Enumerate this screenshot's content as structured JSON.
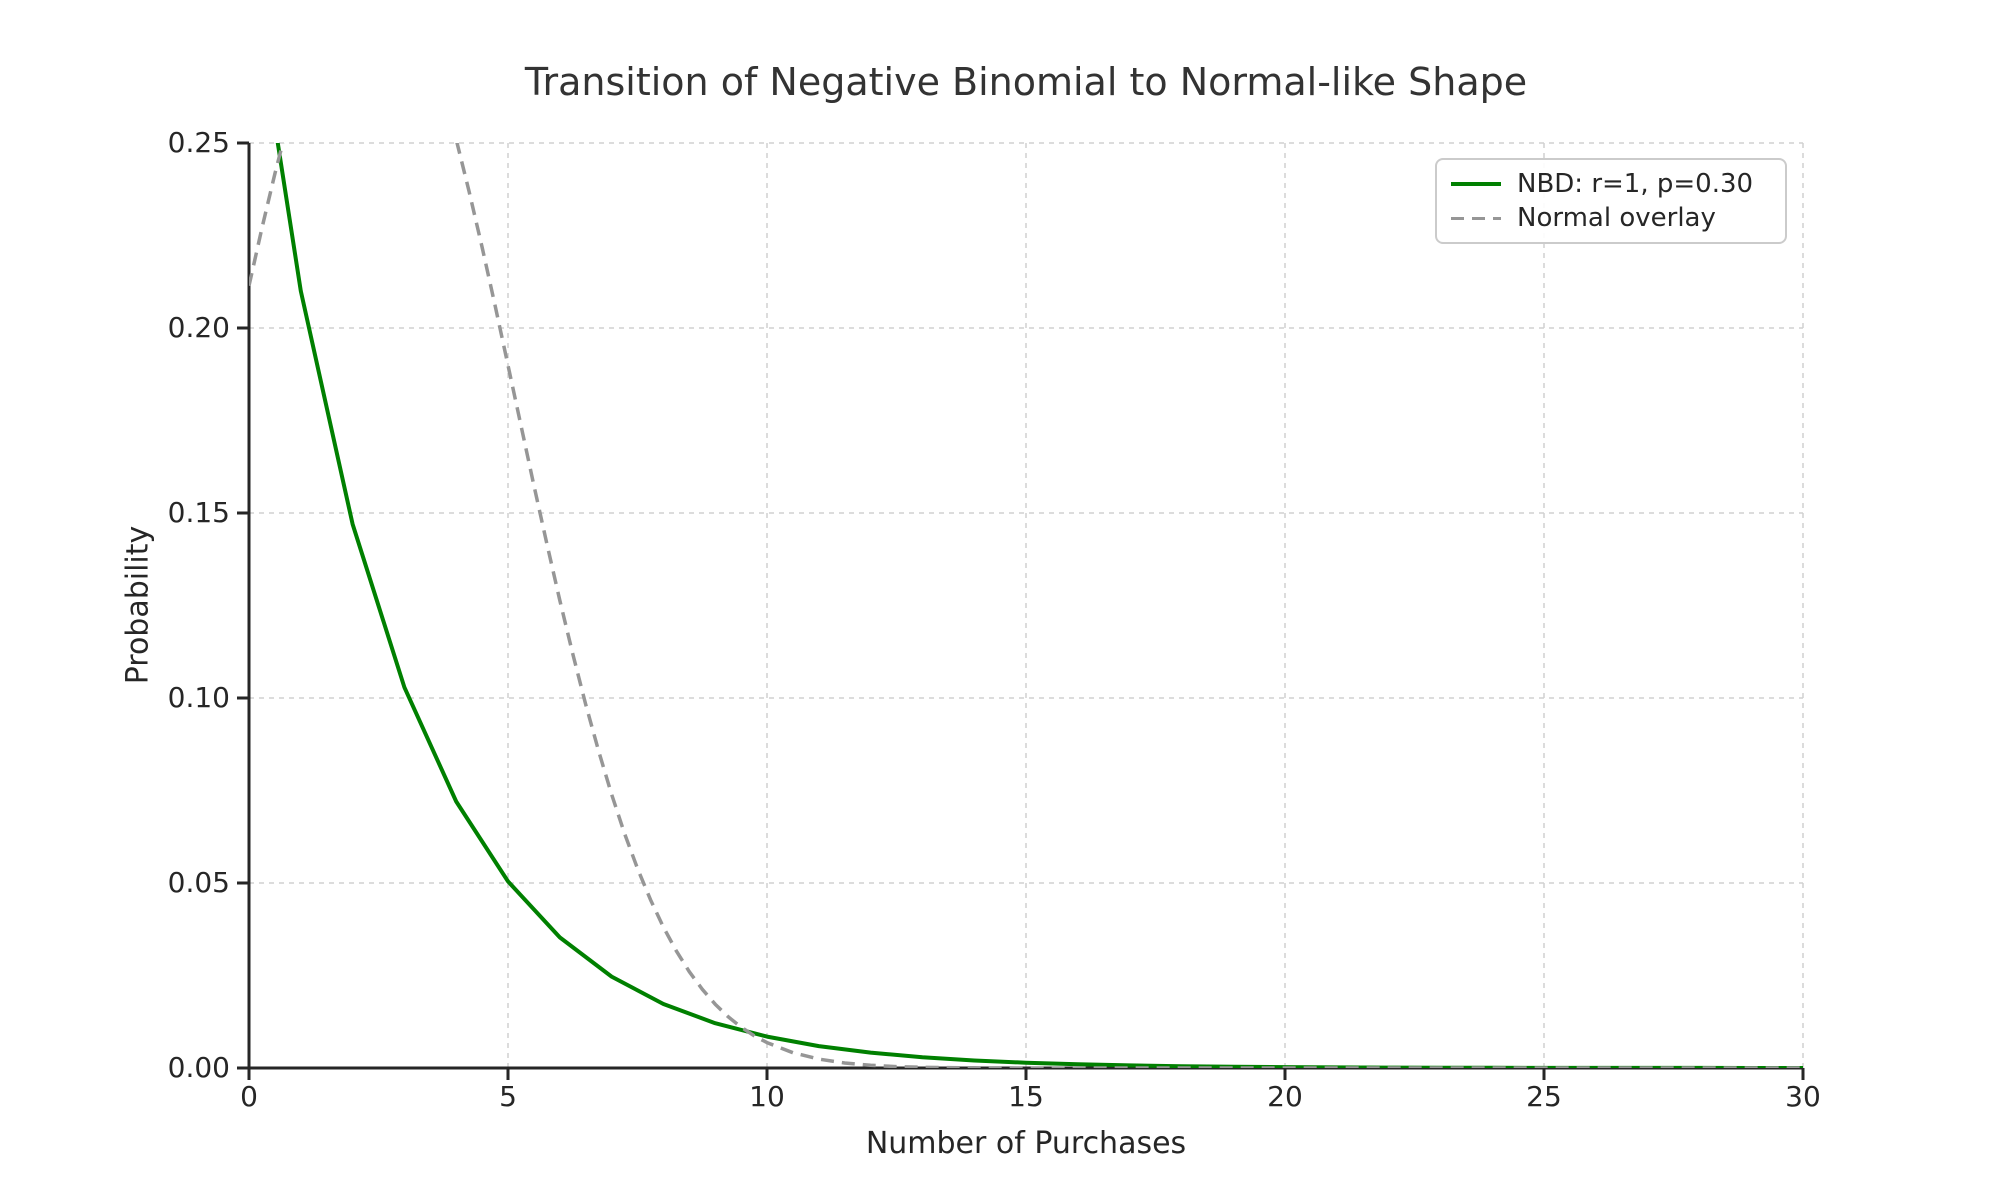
{
  "chart_data": {
    "type": "line",
    "title": "Transition of Negative Binomial to Normal-like Shape",
    "xlabel": "Number of Purchases",
    "ylabel": "Probability",
    "xlim": [
      0,
      30
    ],
    "ylim": [
      0,
      0.25
    ],
    "xticks": [
      0,
      5,
      10,
      15,
      20,
      25,
      30
    ],
    "yticks": [
      0,
      0.05,
      0.1,
      0.15,
      0.2,
      0.25
    ],
    "x_tick_labels": [
      "0",
      "5",
      "10",
      "15",
      "20",
      "25",
      "30"
    ],
    "y_tick_labels": [
      "0.00",
      "0.05",
      "0.10",
      "0.15",
      "0.20",
      "0.25"
    ],
    "grid": true,
    "grid_style": "dashed",
    "legend": {
      "position": "upper right",
      "entries": [
        {
          "label": "NBD: r=1, p=0.30",
          "color": "#008000",
          "style": "solid"
        },
        {
          "label": "Normal overlay",
          "color": "#969696",
          "style": "dashed"
        }
      ]
    },
    "series": [
      {
        "name": "NBD: r=1, p=0.30",
        "style": "solid",
        "color": "#008000",
        "line_width": 4,
        "description": "Negative binomial pmf with r=1, p=0.30 (geometric): P(k)=0.3*0.7^k; first point (0,0.30) is clipped above ylim 0.25",
        "x": [
          0,
          1,
          2,
          3,
          4,
          5,
          6,
          7,
          8,
          9,
          10,
          11,
          12,
          13,
          14,
          15,
          16,
          17,
          18,
          19,
          20,
          21,
          22,
          23,
          24,
          25,
          26,
          27,
          28,
          29,
          30
        ],
        "y": [
          0.3,
          0.21,
          0.147,
          0.1029,
          0.07203,
          0.050421,
          0.035295,
          0.024706,
          0.017294,
          0.012106,
          0.008474,
          0.005932,
          0.004152,
          0.002907,
          0.002035,
          0.001424,
          0.000997,
          0.000698,
          0.000489,
          0.000342,
          0.000239,
          0.000168,
          0.000117,
          8.2e-05,
          5.7e-05,
          4e-05,
          2.8e-05,
          2e-05,
          1.4e-05,
          1e-05,
          7e-06
        ]
      },
      {
        "name": "Normal overlay",
        "style": "dashed",
        "color": "#969696",
        "line_width": 3.5,
        "description": "Normal curve, mean 2.33, sd 2.79, scaled to peak 0.30; clipped at top of axes (y=0.25) between x≈0.65 and x≈4.05",
        "x": [
          0,
          0.25,
          0.5,
          0.75,
          1,
          1.25,
          1.5,
          1.75,
          2,
          2.25,
          2.5,
          2.75,
          3,
          3.25,
          3.5,
          3.75,
          4,
          4.25,
          4.5,
          4.75,
          5,
          5.25,
          5.5,
          5.75,
          6,
          6.25,
          6.5,
          6.75,
          7,
          7.25,
          7.5,
          7.75,
          8,
          8.25,
          8.5,
          8.75,
          9,
          9.25,
          9.5,
          9.75,
          10,
          10.5,
          11,
          11.5,
          12,
          12.5,
          13,
          13.5,
          14,
          15,
          16,
          18,
          20,
          25,
          30
        ],
        "y": [
          0.211406,
          0.226958,
          0.241703,
          0.255347,
          0.267601,
          0.278199,
          0.286902,
          0.293509,
          0.297865,
          0.299866,
          0.299465,
          0.29667,
          0.29155,
          0.284225,
          0.274866,
          0.263687,
          0.250939,
          0.236895,
          0.221848,
          0.206178,
          0.189927,
          0.173625,
          0.157456,
          0.141644,
          0.126404,
          0.111902,
          0.098268,
          0.085606,
          0.073979,
          0.063416,
          0.053929,
          0.04549,
          0.03807,
          0.031603,
          0.026023,
          0.021263,
          0.01723,
          0.01385,
          0.011045,
          0.008736,
          0.006857,
          0.004123,
          0.0024,
          0.001352,
          0.000738,
          0.00039,
          0.000199,
          9.9e-05,
          4.8e-05,
          1e-05,
          2e-06,
          0,
          0,
          0,
          0
        ]
      }
    ]
  }
}
